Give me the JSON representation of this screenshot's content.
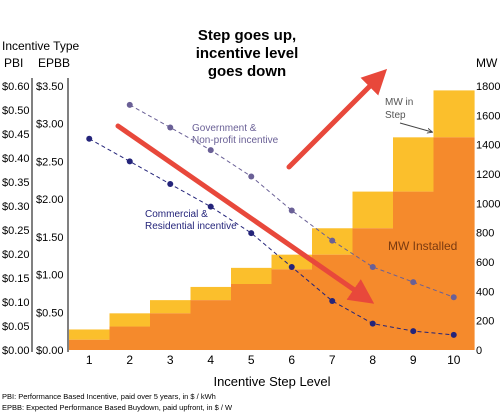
{
  "chart_data": {
    "type": "bar",
    "headline": [
      "Step goes up,",
      "incentive level",
      "goes down"
    ],
    "left_axis_title": "Incentive Type",
    "pbi_label": "PBI",
    "epbb_label": "EPBB",
    "pbi_ticks": [
      "$0.00",
      "$0.05",
      "$0.10",
      "$0.15",
      "$0.20",
      "$0.25",
      "$0.30",
      "$0.35",
      "$0.40",
      "$0.45",
      "$0.50",
      "$0.60"
    ],
    "epbb_ticks": [
      "$0.00",
      "$0.50",
      "$1.00",
      "$1.50",
      "$2.00",
      "$2.50",
      "$3.00",
      "$3.50"
    ],
    "epbb_ylim": [
      0,
      3.5
    ],
    "right_axis_title": "MW",
    "mw_ticks": [
      "0",
      "200",
      "400",
      "600",
      "800",
      "1000",
      "1200",
      "1400",
      "1600",
      "1800"
    ],
    "mw_ylim": [
      0,
      1800
    ],
    "xlabel": "Incentive Step Level",
    "categories": [
      "1",
      "2",
      "3",
      "4",
      "5",
      "6",
      "7",
      "8",
      "9",
      "10"
    ],
    "mw_installed": [
      70,
      160,
      250,
      340,
      450,
      550,
      650,
      830,
      1080,
      1450
    ],
    "mw_in_step": [
      70,
      90,
      90,
      90,
      110,
      100,
      180,
      250,
      370,
      320
    ],
    "series": [
      {
        "name": "Government & Non-profit incentive",
        "x": [
          2,
          3,
          4,
          5,
          6,
          7,
          8,
          9,
          10
        ],
        "values": [
          3.25,
          2.95,
          2.65,
          2.3,
          1.85,
          1.45,
          1.1,
          0.9,
          0.7
        ]
      },
      {
        "name": "Commercial & Residential incentive",
        "x": [
          1,
          2,
          3,
          4,
          5,
          6,
          7,
          8,
          9,
          10
        ],
        "values": [
          2.8,
          2.5,
          2.2,
          1.9,
          1.55,
          1.1,
          0.65,
          0.35,
          0.25,
          0.2
        ]
      }
    ],
    "gov_label": [
      "Government &",
      "Non-profit incentive"
    ],
    "com_label": [
      "Commercial &",
      "Residential incentive"
    ],
    "mw_in_step_label": [
      "MW in",
      "Step"
    ],
    "mw_installed_label": "MW Installed",
    "footnotes": [
      "PBI: Performance Based Incentive, paid over 5 years, in $ / kWh",
      "EPBB: Expected Performance Based Buydown, paid upfront, in $ / W"
    ],
    "colors": {
      "installed": "#f58a2c",
      "step": "#fbbf2c",
      "gov": "#6a6096",
      "com": "#24247a",
      "arrow": "#e8483b"
    }
  }
}
